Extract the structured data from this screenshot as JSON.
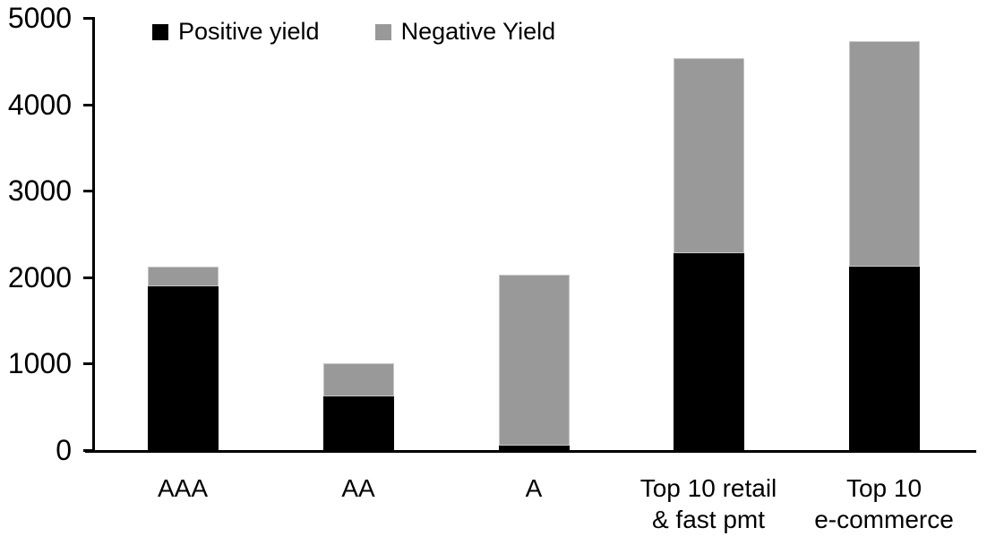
{
  "chart_data": {
    "type": "bar",
    "stacked": true,
    "categories": [
      "AAA",
      "AA",
      "A",
      "Top 10 retail\n& fast pmt",
      "Top 10\ne-commerce"
    ],
    "series": [
      {
        "name": "Positive yield",
        "color": "#000000",
        "values": [
          1890,
          620,
          50,
          2280,
          2120
        ]
      },
      {
        "name": "Negative Yield",
        "color": "#999999",
        "values": [
          230,
          380,
          1980,
          2250,
          2610
        ]
      }
    ],
    "title": "",
    "xlabel": "",
    "ylabel": "",
    "ylim": [
      0,
      5000
    ],
    "yticks": [
      0,
      1000,
      2000,
      3000,
      4000,
      5000
    ],
    "grid": false,
    "legend_position": "top",
    "axis_color": "#000000",
    "background_color": "#ffffff"
  }
}
